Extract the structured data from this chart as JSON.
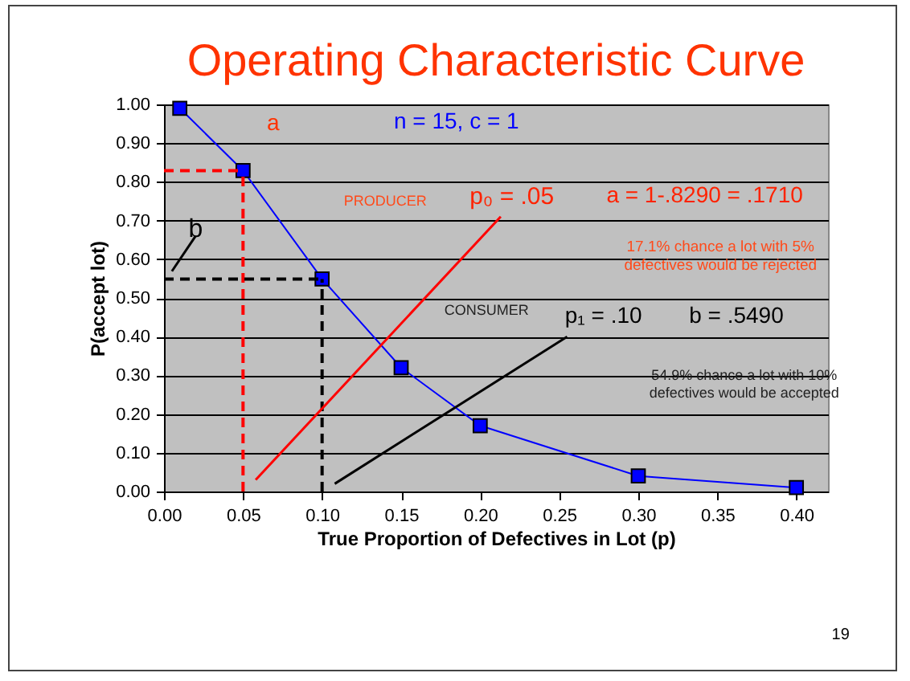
{
  "chart_data": {
    "type": "line",
    "title": "Operating Characteristic Curve",
    "xlabel": "True Proportion of Defectives in Lot (p)",
    "ylabel": "P(accept lot)",
    "x": [
      0.01,
      0.05,
      0.1,
      0.15,
      0.2,
      0.3,
      0.4
    ],
    "values": [
      0.99,
      0.829,
      0.549,
      0.32,
      0.17,
      0.04,
      0.01
    ],
    "color": "#0000ff",
    "marker": "square",
    "line_style": "solid",
    "grid": "y",
    "xlim": [
      0,
      0.42
    ],
    "xticks": [
      {
        "value": 0,
        "label": "0.00"
      },
      {
        "value": 0.05,
        "label": "0.05"
      },
      {
        "value": 0.1,
        "label": "0.10"
      },
      {
        "value": 0.15,
        "label": "0.15"
      },
      {
        "value": 0.2,
        "label": "0.20"
      },
      {
        "value": 0.25,
        "label": "0.25"
      },
      {
        "value": 0.3,
        "label": "0.30"
      },
      {
        "value": 0.35,
        "label": "0.35"
      },
      {
        "value": 0.4,
        "label": "0.40"
      }
    ],
    "ylim": [
      0,
      1
    ],
    "yticks": [
      {
        "value": 0,
        "label": "0.00"
      },
      {
        "value": 0.1,
        "label": "0.10"
      },
      {
        "value": 0.2,
        "label": "0.20"
      },
      {
        "value": 0.3,
        "label": "0.30"
      },
      {
        "value": 0.4,
        "label": "0.40"
      },
      {
        "value": 0.5,
        "label": "0.50"
      },
      {
        "value": 0.6,
        "label": "0.60"
      },
      {
        "value": 0.7,
        "label": "0.70"
      },
      {
        "value": 0.8,
        "label": "0.80"
      },
      {
        "value": 0.9,
        "label": "0.90"
      },
      {
        "value": 1,
        "label": "1.00"
      }
    ],
    "ref_lines": [
      {
        "axis": "x",
        "value": 0.05,
        "color": "#ff0000",
        "line_style": "dashed"
      },
      {
        "axis": "y",
        "value": 0.829,
        "color": "#ff0000",
        "line_style": "dashed"
      },
      {
        "axis": "x",
        "value": 0.1,
        "color": "#000000",
        "line_style": "dashed"
      },
      {
        "axis": "y",
        "value": 0.549,
        "color": "#000000",
        "line_style": "dashed"
      }
    ],
    "annotations": [
      "n = 15,  c = 1",
      "PRODUCER",
      "p₀ = .05",
      "a = 1-.8290 = .1710",
      "17.1% chance a lot with 5%\ndefectives would be rejected",
      "CONSUMER",
      "p₁ = .10",
      "b = .5490",
      "54.9% chance a lot with 10%\ndefectives would be accepted",
      "a",
      {
        "text": "b",
        "x": 0,
        "y": 0.549
      },
      "19"
    ]
  }
}
